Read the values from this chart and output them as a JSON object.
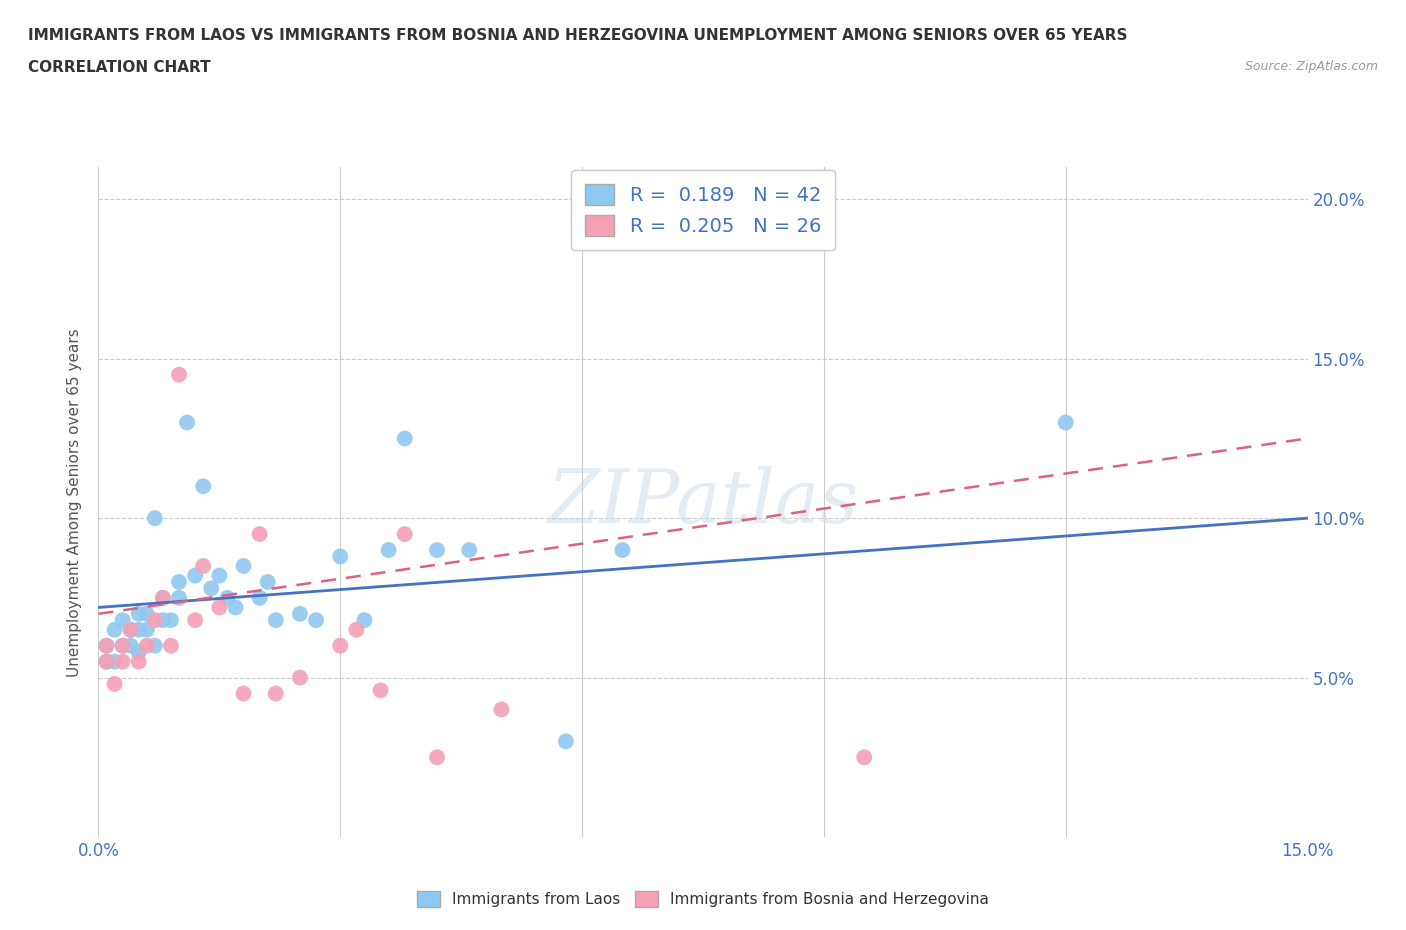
{
  "title_line1": "IMMIGRANTS FROM LAOS VS IMMIGRANTS FROM BOSNIA AND HERZEGOVINA UNEMPLOYMENT AMONG SENIORS OVER 65 YEARS",
  "title_line2": "CORRELATION CHART",
  "source_text": "Source: ZipAtlas.com",
  "ylabel": "Unemployment Among Seniors over 65 years",
  "xlim": [
    0.0,
    0.15
  ],
  "ylim": [
    0.0,
    0.21
  ],
  "xticks": [
    0.0,
    0.03,
    0.06,
    0.09,
    0.12,
    0.15
  ],
  "yticks": [
    0.05,
    0.1,
    0.15,
    0.2
  ],
  "color_laos": "#8FC8F0",
  "color_bosnia": "#F4A0B5",
  "color_line_laos": "#4472C4",
  "color_line_bosnia": "#E06080",
  "R_laos": 0.189,
  "N_laos": 42,
  "R_bosnia": 0.205,
  "N_bosnia": 26,
  "legend_items": [
    "Immigrants from Laos",
    "Immigrants from Bosnia and Herzegovina"
  ],
  "laos_x": [
    0.001,
    0.001,
    0.002,
    0.002,
    0.003,
    0.003,
    0.004,
    0.004,
    0.005,
    0.005,
    0.005,
    0.006,
    0.006,
    0.007,
    0.007,
    0.008,
    0.008,
    0.009,
    0.01,
    0.01,
    0.011,
    0.012,
    0.013,
    0.014,
    0.015,
    0.016,
    0.017,
    0.018,
    0.02,
    0.021,
    0.022,
    0.025,
    0.027,
    0.03,
    0.033,
    0.036,
    0.038,
    0.042,
    0.046,
    0.058,
    0.065,
    0.12
  ],
  "laos_y": [
    0.055,
    0.06,
    0.055,
    0.065,
    0.06,
    0.068,
    0.06,
    0.065,
    0.058,
    0.065,
    0.07,
    0.065,
    0.07,
    0.1,
    0.06,
    0.068,
    0.075,
    0.068,
    0.08,
    0.075,
    0.13,
    0.082,
    0.11,
    0.078,
    0.082,
    0.075,
    0.072,
    0.085,
    0.075,
    0.08,
    0.068,
    0.07,
    0.068,
    0.088,
    0.068,
    0.09,
    0.125,
    0.09,
    0.09,
    0.03,
    0.09,
    0.13
  ],
  "bosnia_x": [
    0.001,
    0.001,
    0.002,
    0.003,
    0.003,
    0.004,
    0.005,
    0.006,
    0.007,
    0.008,
    0.009,
    0.01,
    0.012,
    0.013,
    0.015,
    0.018,
    0.02,
    0.022,
    0.025,
    0.03,
    0.032,
    0.035,
    0.038,
    0.042,
    0.05,
    0.095
  ],
  "bosnia_y": [
    0.055,
    0.06,
    0.048,
    0.055,
    0.06,
    0.065,
    0.055,
    0.06,
    0.068,
    0.075,
    0.06,
    0.145,
    0.068,
    0.085,
    0.072,
    0.045,
    0.095,
    0.045,
    0.05,
    0.06,
    0.065,
    0.046,
    0.095,
    0.025,
    0.04,
    0.025
  ]
}
